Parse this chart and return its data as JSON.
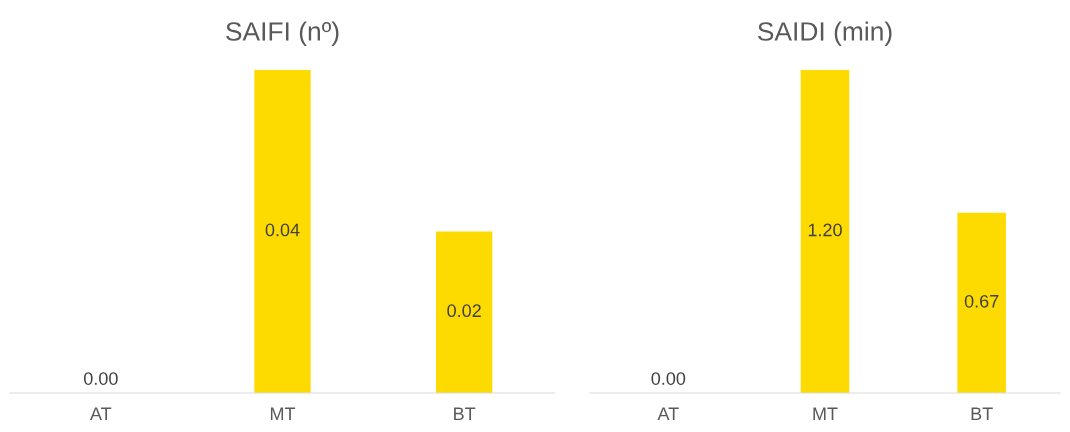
{
  "chart_data": [
    {
      "type": "bar",
      "title": "SAIFI (nº)",
      "categories": [
        "AT",
        "MT",
        "BT"
      ],
      "values": [
        0,
        0.04,
        0.02
      ],
      "value_labels": [
        "0.00",
        "0.04",
        "0.02"
      ],
      "color": "#fedb00"
    },
    {
      "type": "bar",
      "title": "SAIDI (min)",
      "categories": [
        "AT",
        "MT",
        "BT"
      ],
      "values": [
        0,
        1.2,
        0.67
      ],
      "value_labels": [
        "0.00",
        "1.20",
        "0.67"
      ],
      "color": "#fedb00"
    }
  ]
}
